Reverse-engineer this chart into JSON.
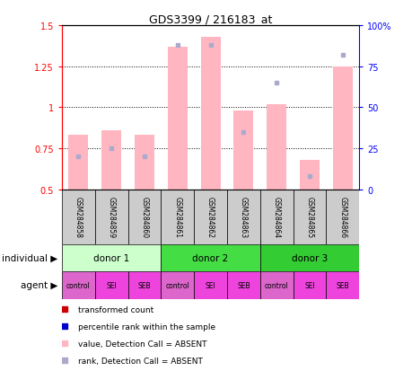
{
  "title": "GDS3399 / 216183_at",
  "samples": [
    "GSM284858",
    "GSM284859",
    "GSM284860",
    "GSM284861",
    "GSM284862",
    "GSM284863",
    "GSM284864",
    "GSM284865",
    "GSM284866"
  ],
  "bar_values": [
    0.83,
    0.86,
    0.83,
    1.37,
    1.43,
    0.98,
    1.02,
    0.68,
    1.25
  ],
  "rank_values": [
    20,
    25,
    20,
    88,
    88,
    35,
    65,
    8,
    82
  ],
  "bar_absent": [
    true,
    true,
    true,
    true,
    true,
    true,
    true,
    true,
    true
  ],
  "rank_absent": [
    true,
    true,
    true,
    true,
    true,
    true,
    true,
    true,
    true
  ],
  "ylim_left": [
    0.5,
    1.5
  ],
  "ylim_right": [
    0,
    100
  ],
  "yticks_left": [
    0.5,
    0.75,
    1.0,
    1.25,
    1.5
  ],
  "yticks_left_labels": [
    "0.5",
    "0.75",
    "1",
    "1.25",
    "1.5"
  ],
  "yticks_right": [
    0,
    25,
    50,
    75,
    100
  ],
  "yticks_right_labels": [
    "0",
    "25",
    "50",
    "75",
    "100%"
  ],
  "gridlines": [
    0.75,
    1.0,
    1.25
  ],
  "bar_color_absent": "#FFB6C1",
  "rank_dot_color_absent": "#AAAACC",
  "bar_color_present": "#CC0000",
  "rank_dot_color_present": "#0000CC",
  "donors": [
    {
      "label": "donor 1",
      "start": 0,
      "end": 3,
      "color": "#CCFFCC"
    },
    {
      "label": "donor 2",
      "start": 3,
      "end": 6,
      "color": "#44DD44"
    },
    {
      "label": "donor 3",
      "start": 6,
      "end": 9,
      "color": "#33CC33"
    }
  ],
  "agents": [
    "control",
    "SEI",
    "SEB",
    "control",
    "SEI",
    "SEB",
    "control",
    "SEI",
    "SEB"
  ],
  "agent_colors": [
    "#DD66CC",
    "#EE44DD",
    "#EE44DD",
    "#DD66CC",
    "#EE44DD",
    "#EE44DD",
    "#DD66CC",
    "#EE44DD",
    "#EE44DD"
  ],
  "legend_items": [
    {
      "label": "transformed count",
      "color": "#CC0000",
      "marker": "s"
    },
    {
      "label": "percentile rank within the sample",
      "color": "#0000CC",
      "marker": "s"
    },
    {
      "label": "value, Detection Call = ABSENT",
      "color": "#FFB6C1",
      "marker": "s"
    },
    {
      "label": "rank, Detection Call = ABSENT",
      "color": "#AAAACC",
      "marker": "s"
    }
  ],
  "individual_label": "individual",
  "agent_label": "agent",
  "sample_row_color": "#CCCCCC",
  "bar_width": 0.6
}
